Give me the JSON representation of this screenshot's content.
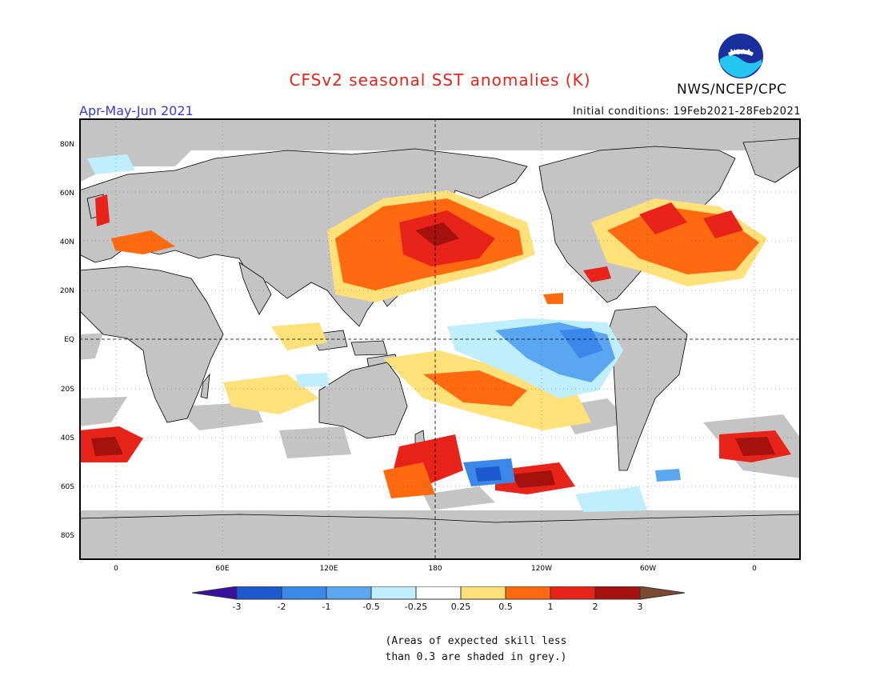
{
  "header": {
    "title": "CFSv2 seasonal SST anomalies (K)",
    "agency": "NWS/NCEP/CPC",
    "season": "Apr-May-Jun 2021",
    "initial_conditions": "Initial conditions: 19Feb2021-28Feb2021"
  },
  "logo": {
    "text": "NOAA",
    "icon": "noaa-logo"
  },
  "axes": {
    "y_ticks": [
      "80N",
      "60N",
      "40N",
      "20N",
      "EQ",
      "20S",
      "40S",
      "60S",
      "80S"
    ],
    "x_ticks": [
      "0",
      "60E",
      "120E",
      "180",
      "120W",
      "60W",
      "0"
    ]
  },
  "legend": {
    "unit": "K",
    "labels": [
      "-3",
      "-2",
      "-1",
      "-0.5",
      "-0.25",
      "0.25",
      "0.5",
      "1",
      "2",
      "3"
    ],
    "colors": [
      "#3b0f9e",
      "#1d5ad0",
      "#3c87ea",
      "#5aa6f0",
      "#bfeefc",
      "#ffffff",
      "#ffe17a",
      "#ff6a10",
      "#e8231a",
      "#a5110d",
      "#7b4a30"
    ],
    "skill_mask_color": "#c4c4c4"
  },
  "footnote": {
    "line1": "(Areas of expected skill less",
    "line2": "than 0.3 are shaded in grey.)"
  }
}
